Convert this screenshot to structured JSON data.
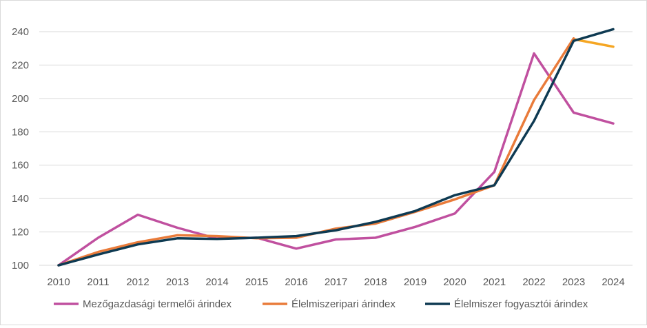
{
  "chart_data": {
    "type": "line",
    "x": [
      "2010",
      "2011",
      "2012",
      "2013",
      "2014",
      "2015",
      "2016",
      "2017",
      "2018",
      "2019",
      "2020",
      "2021",
      "2022",
      "2023",
      "2024"
    ],
    "ylim": [
      100,
      240
    ],
    "yticks": [
      100,
      120,
      140,
      160,
      180,
      200,
      220,
      240
    ],
    "grid": true,
    "legend_position": "bottom",
    "series": [
      {
        "name": "Mezőgazdasági termelői árindex",
        "color": "#C0509F",
        "values": [
          100,
          116.5,
          130.3,
          122.5,
          116,
          116.5,
          110,
          115.5,
          116.5,
          123,
          131,
          156,
          227,
          191.5,
          185
        ]
      },
      {
        "name": "Élelmiszeripari árindex",
        "color": "#E97B3A",
        "values": [
          100,
          108,
          113.8,
          118,
          117.5,
          116.2,
          116.5,
          122,
          125,
          132,
          139.5,
          148,
          199,
          236,
          null
        ]
      },
      {
        "name": "Élelmiszer fogyasztói árindex",
        "color": "#0E3A52",
        "values": [
          100,
          106.5,
          112.5,
          116.2,
          115.8,
          116.5,
          117.5,
          121,
          126,
          132.5,
          142,
          148,
          186.5,
          234.5,
          241.5
        ]
      }
    ],
    "extra_segments": [
      {
        "color": "#F5A623",
        "x": [
          "2023",
          "2024"
        ],
        "values": [
          235.5,
          231
        ]
      }
    ]
  }
}
